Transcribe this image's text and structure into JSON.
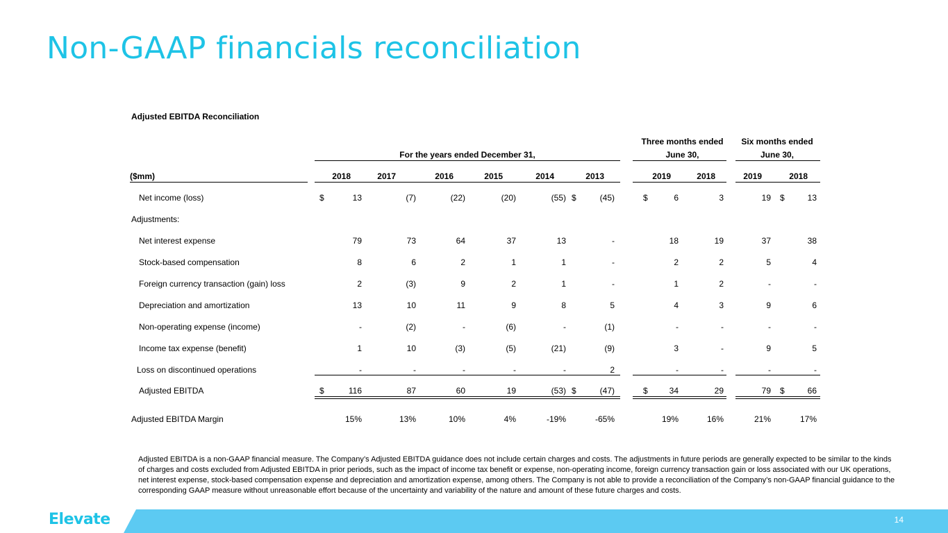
{
  "slide": {
    "title": "Non-GAAP financials reconciliation",
    "page_number": "14",
    "logo_text": "Elevate",
    "accent_color": "#1ec3e6",
    "footer_color": "#5ccaf2"
  },
  "table": {
    "section_title": "Adjusted EBITDA Reconciliation",
    "group_headers": {
      "years": "For the years ended December 31,",
      "three_months_line1": "Three months ended",
      "three_months_line2": "June 30,",
      "six_months_line1": "Six months ended",
      "six_months_line2": "June 30,"
    },
    "unit_label": "($mm)",
    "columns": [
      "2018",
      "2017",
      "2016",
      "2015",
      "2014",
      "2013",
      "2019",
      "2018",
      "2019",
      "2018"
    ],
    "rows": [
      {
        "label": "Net income (loss)",
        "values": [
          "$",
          "13",
          "(7)",
          "(22)",
          "(20)",
          "(55)",
          "$",
          "(45)",
          "$",
          "6",
          "3",
          "19",
          "$",
          "13"
        ]
      },
      {
        "label": "Adjustments:"
      },
      {
        "label": "Net interest expense",
        "values": [
          "79",
          "73",
          "64",
          "37",
          "13",
          "-",
          "18",
          "19",
          "37",
          "38"
        ]
      },
      {
        "label": "Stock-based compensation",
        "values": [
          "8",
          "6",
          "2",
          "1",
          "1",
          "-",
          "2",
          "2",
          "5",
          "4"
        ]
      },
      {
        "label": "Foreign currency transaction (gain) loss",
        "values": [
          "2",
          "(3)",
          "9",
          "2",
          "1",
          "-",
          "1",
          "2",
          "-",
          "-"
        ]
      },
      {
        "label": "Depreciation and amortization",
        "values": [
          "13",
          "10",
          "11",
          "9",
          "8",
          "5",
          "4",
          "3",
          "9",
          "6"
        ]
      },
      {
        "label": "Non-operating expense (income)",
        "values": [
          "-",
          "(2)",
          "-",
          "(6)",
          "-",
          "(1)",
          "-",
          "-",
          "-",
          "-"
        ]
      },
      {
        "label": "Income tax expense (benefit)",
        "values": [
          "1",
          "10",
          "(3)",
          "(5)",
          "(21)",
          "(9)",
          "3",
          "-",
          "9",
          "5"
        ]
      },
      {
        "label": "Loss on discontinued operations",
        "values": [
          "-",
          "-",
          "-",
          "-",
          "-",
          "2",
          "-",
          "-",
          "-",
          "-"
        ]
      },
      {
        "label": "Adjusted EBITDA",
        "values": [
          "$",
          "116",
          "87",
          "60",
          "19",
          "(53)",
          "$",
          "(47)",
          "$",
          "34",
          "29",
          "79",
          "$",
          "66"
        ]
      },
      {
        "label": "Adjusted EBITDA Margin",
        "values": [
          "15%",
          "13%",
          "10%",
          "4%",
          "-19%",
          "-65%",
          "19%",
          "16%",
          "21%",
          "17%"
        ]
      }
    ]
  },
  "footnote": "Adjusted EBITDA is a non-GAAP financial measure. The Company’s Adjusted EBITDA guidance does not include certain charges and costs.  The adjustments in future periods are generally expected to be similar to the kinds of charges and costs excluded from Adjusted EBITDA in prior periods, such as the impact of income tax benefit or expense, non-operating income, foreign currency transaction gain or loss associated with our UK operations, net interest expense, stock-based compensation expense and depreciation and amortization expense, among others.  The Company is not able to provide a reconciliation of the Company’s non-GAAP financial guidance to the corresponding GAAP measure without unreasonable effort because of the uncertainty and variability of the nature and amount of these future charges and costs."
}
